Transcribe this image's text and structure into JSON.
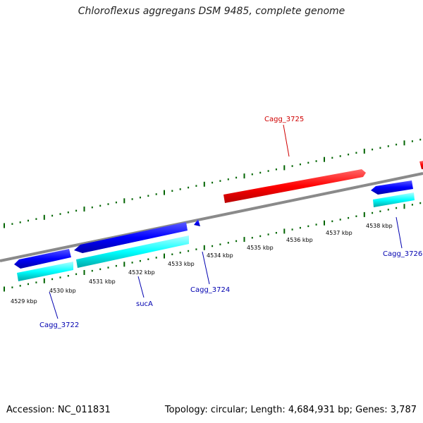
{
  "title": "Chloroflexus aggregans DSM 9485, complete genome",
  "footer": {
    "accession": "Accession: NC_011831",
    "summary": "Topology: circular; Length: 4,684,931 bp; Genes: 3,787"
  },
  "scale_labels": [
    "4529 kbp",
    "4530 kbp",
    "4531 kbp",
    "4532 kbp",
    "4533 kbp",
    "4534 kbp",
    "4535 kbp",
    "4536 kbp",
    "4537 kbp",
    "4538 kbp"
  ],
  "gene_labels": [
    {
      "name": "Cagg_3725",
      "color": "#d00000"
    },
    {
      "name": "Cagg_3722",
      "color": "#0000b0"
    },
    {
      "name": "sucA",
      "color": "#0000b0"
    },
    {
      "name": "Cagg_3724",
      "color": "#0000b0"
    },
    {
      "name": "Cagg_3726",
      "color": "#0000b0"
    }
  ],
  "colors": {
    "backbone": "#808080",
    "forward_gene": "#ff0000",
    "reverse_gene": "#0000ff",
    "reverse_feature": "#00ffff",
    "tick": "#006400"
  }
}
